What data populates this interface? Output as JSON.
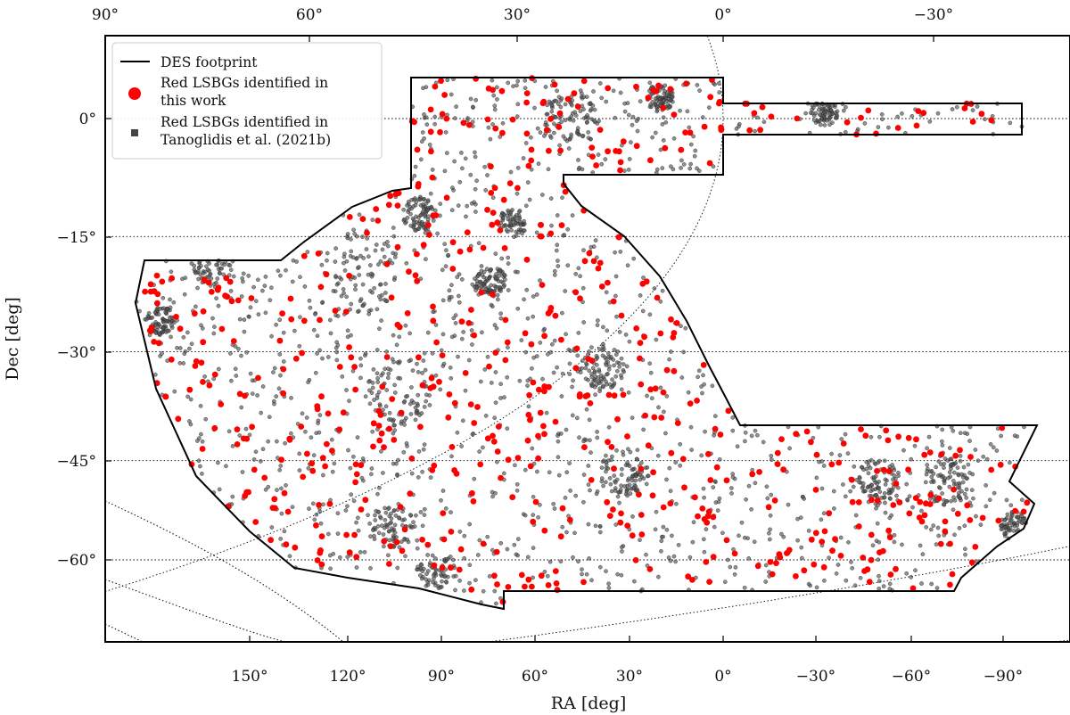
{
  "chart_data": {
    "type": "scatter",
    "projection": "McBryde-Thomas flat-polar quartic (sky map)",
    "xlabel": "RA [deg]",
    "ylabel": "Dec [deg]",
    "xlim": [
      180,
      -110
    ],
    "ylim": [
      -70,
      7
    ],
    "grid": true,
    "legend_position": "top-left",
    "bottom_ra_ticks": [
      "150°",
      "120°",
      "90°",
      "60°",
      "30°",
      "0°",
      "−30°",
      "−60°",
      "−90°"
    ],
    "top_ra_ticks": [
      "90°",
      "60°",
      "30°",
      "0°",
      "−30°"
    ],
    "dec_ticks": [
      "0°",
      "−15°",
      "−30°",
      "−45°",
      "−60°"
    ],
    "series": [
      {
        "name": "DES footprint",
        "kind": "line",
        "color": "#000000"
      },
      {
        "name": "Red LSBGs identified in this work",
        "kind": "marker",
        "marker": "circle",
        "color": "#ff0000"
      },
      {
        "name": "Red LSBGs identified in Tanoglidis et al. (2021b)",
        "kind": "marker",
        "marker": "square",
        "color": "#444444"
      }
    ],
    "notes": "Thousands of individual galaxy positions scattered across the DES footprint; black points dense, red points sparser."
  },
  "legend": {
    "footprint_label": "DES footprint",
    "red_line1": "Red LSBGs identified in",
    "red_line2": "this work",
    "black_line1": "Red LSBGs identified in",
    "black_line2": "Tanoglidis et al. (2021b)"
  }
}
